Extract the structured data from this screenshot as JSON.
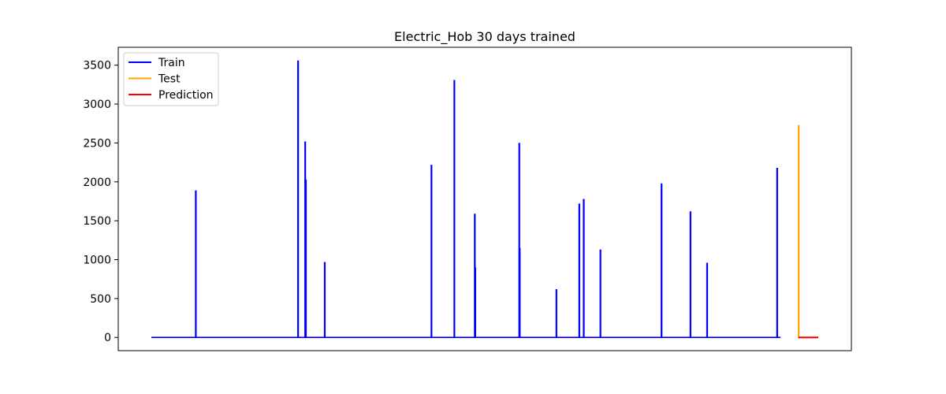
{
  "chart_data": {
    "type": "line",
    "title": "Electric_Hob 30 days trained",
    "xlabel": "",
    "ylabel": "",
    "x_ticks_visible": false,
    "ylim": [
      -170,
      3730
    ],
    "xlim": [
      0,
      30
    ],
    "yticks": [
      0,
      500,
      1000,
      1500,
      2000,
      2500,
      3000,
      3500
    ],
    "grid": false,
    "legend_position": "top-left",
    "series": [
      {
        "name": "Train",
        "color": "#0000ff",
        "baseline": 0,
        "x_range": [
          0,
          28.3
        ],
        "spikes": [
          {
            "x": 2.0,
            "y": 1890
          },
          {
            "x": 6.6,
            "y": 3560
          },
          {
            "x": 6.92,
            "y": 2520
          },
          {
            "x": 6.95,
            "y": 2030
          },
          {
            "x": 7.8,
            "y": 970
          },
          {
            "x": 12.6,
            "y": 2220
          },
          {
            "x": 13.63,
            "y": 3310
          },
          {
            "x": 14.55,
            "y": 1590
          },
          {
            "x": 14.57,
            "y": 900
          },
          {
            "x": 16.55,
            "y": 2500
          },
          {
            "x": 16.57,
            "y": 1150
          },
          {
            "x": 18.22,
            "y": 620
          },
          {
            "x": 19.25,
            "y": 1720
          },
          {
            "x": 19.45,
            "y": 1780
          },
          {
            "x": 20.2,
            "y": 1130
          },
          {
            "x": 22.95,
            "y": 1980
          },
          {
            "x": 24.25,
            "y": 1620
          },
          {
            "x": 25.0,
            "y": 960
          },
          {
            "x": 28.15,
            "y": 2180
          }
        ]
      },
      {
        "name": "Test",
        "color": "#ffa500",
        "baseline": 0,
        "x_range": [
          29.1,
          30.0
        ],
        "spikes": [
          {
            "x": 29.12,
            "y": 2730
          }
        ]
      },
      {
        "name": "Prediction",
        "color": "#ff0000",
        "baseline": 0,
        "x_range": [
          29.1,
          30.0
        ],
        "spikes": []
      }
    ]
  }
}
